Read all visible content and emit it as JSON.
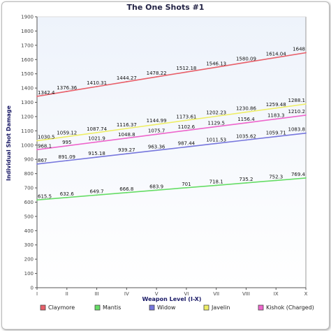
{
  "chart_data": {
    "type": "line",
    "title": "The One Shots #1",
    "xlabel": "Weapon Level (I-X)",
    "ylabel": "Individual Shot Damage",
    "categories": [
      "I",
      "II",
      "III",
      "IV",
      "V",
      "VI",
      "VII",
      "VIII",
      "IX",
      "X"
    ],
    "ylim": [
      0,
      1900
    ],
    "yticks": [
      0,
      100,
      200,
      300,
      400,
      500,
      600,
      700,
      800,
      900,
      1000,
      1100,
      1200,
      1300,
      1400,
      1500,
      1600,
      1700,
      1800,
      1900
    ],
    "grid": false,
    "legend_position": "bottom",
    "series": [
      {
        "name": "Claymore",
        "color": "#e8606a",
        "values": [
          1342.4,
          1376.36,
          1410.31,
          1444.27,
          1478.22,
          1512.18,
          1546.13,
          1580.09,
          1614.04,
          1648
        ]
      },
      {
        "name": "Mantis",
        "color": "#66dd66",
        "values": [
          615.5,
          632.6,
          649.7,
          666.8,
          683.9,
          701,
          718.1,
          735.2,
          752.3,
          769.4
        ]
      },
      {
        "name": "Widow",
        "color": "#7777dd",
        "values": [
          867,
          891.09,
          915.18,
          939.27,
          963.36,
          987.44,
          1011.53,
          1035.62,
          1059.71,
          1083.8
        ]
      },
      {
        "name": "Javelin",
        "color": "#eeee66",
        "values": [
          1030.5,
          1059.12,
          1087.74,
          1116.37,
          1144.99,
          1173.61,
          1202.23,
          1230.86,
          1259.48,
          1288.1
        ]
      },
      {
        "name": "Kishok (Charged)",
        "color": "#ee66cc",
        "values": [
          968.1,
          995,
          1021.9,
          1048.8,
          1075.7,
          1102.6,
          1129.5,
          1156.4,
          1183.3,
          1210.2
        ]
      }
    ]
  }
}
